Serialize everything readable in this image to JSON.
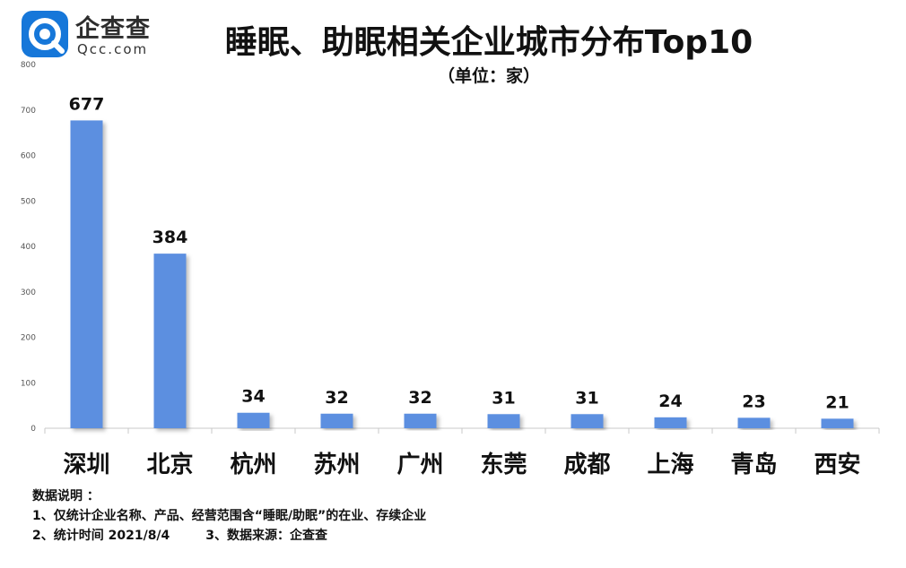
{
  "logo": {
    "name": "企查查",
    "domain": "Qcc.com",
    "icon_color": "#1677d9"
  },
  "title": "睡眠、助眠相关企业城市分布Top10",
  "subtitle": "（单位：家）",
  "chart_data": {
    "type": "bar",
    "categories": [
      "深圳",
      "北京",
      "杭州",
      "苏州",
      "广州",
      "东莞",
      "成都",
      "上海",
      "青岛",
      "西安"
    ],
    "values": [
      677,
      384,
      34,
      32,
      32,
      31,
      31,
      24,
      23,
      21
    ],
    "ylim": [
      0,
      800
    ],
    "yticks": [
      0,
      100,
      200,
      300,
      400,
      500,
      600,
      700,
      800
    ],
    "bar_color": "#5b8fe0",
    "grid": false,
    "data_labels": true
  },
  "notes": {
    "heading": "数据说明  ：",
    "line1": "1、仅统计企业名称、产品、经营范围含“睡眠/助眠”的在业、存续企业",
    "line2a": "2、统计时间 2021/8/4",
    "line2b": "3、数据来源：企查查"
  }
}
